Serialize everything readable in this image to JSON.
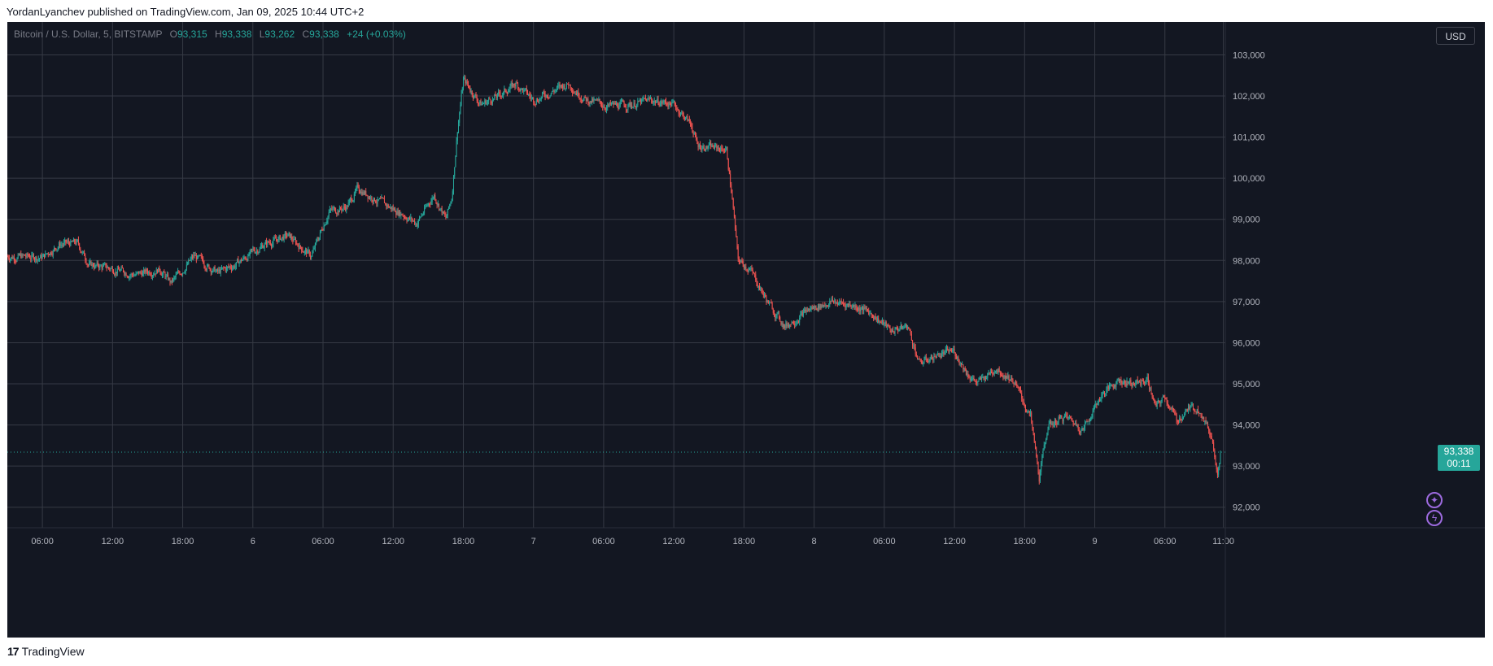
{
  "header": {
    "published_text": "YordanLyanchev published on TradingView.com, Jan 09, 2025 10:44 UTC+2"
  },
  "legend": {
    "symbol": "Bitcoin / U.S. Dollar, 5, BITSTAMP",
    "open_label": "O",
    "open": "93,315",
    "high_label": "H",
    "high": "93,338",
    "low_label": "L",
    "low": "93,262",
    "close_label": "C",
    "close": "93,338",
    "change": "+24 (+0.03%)"
  },
  "currency_button": "USD",
  "price_tag": {
    "price": "93,338",
    "countdown": "00:11"
  },
  "footer": {
    "brand": "TradingView",
    "logo_glyph": "17"
  },
  "icons": {
    "top": "sparkle-icon",
    "bottom": "lightning-icon"
  },
  "colors": {
    "background": "#131722",
    "grid": "#363a45",
    "up": "#26a69a",
    "down": "#ef5350",
    "axis_text": "#b2b5be",
    "accent_icon": "#9c6ade"
  },
  "chart_data": {
    "type": "candlestick",
    "symbol": "Bitcoin / U.S. Dollar",
    "interval": "5",
    "exchange": "BITSTAMP",
    "currency": "USD",
    "y_ticks": [
      92000,
      93000,
      94000,
      95000,
      96000,
      97000,
      98000,
      99000,
      100000,
      101000,
      102000,
      103000
    ],
    "y_tick_labels": [
      "92,000",
      "93,000",
      "94,000",
      "95,000",
      "96,000",
      "97,000",
      "98,000",
      "99,000",
      "100,000",
      "101,000",
      "102,000",
      "103,000"
    ],
    "ylim": [
      91500,
      103800
    ],
    "x_ticks": [
      {
        "time": "2025-01-05 06:00",
        "label": "06:00"
      },
      {
        "time": "2025-01-05 12:00",
        "label": "12:00"
      },
      {
        "time": "2025-01-05 18:00",
        "label": "18:00"
      },
      {
        "time": "2025-01-06 00:00",
        "label": "6"
      },
      {
        "time": "2025-01-06 06:00",
        "label": "06:00"
      },
      {
        "time": "2025-01-06 12:00",
        "label": "12:00"
      },
      {
        "time": "2025-01-06 18:00",
        "label": "18:00"
      },
      {
        "time": "2025-01-07 00:00",
        "label": "7"
      },
      {
        "time": "2025-01-07 06:00",
        "label": "06:00"
      },
      {
        "time": "2025-01-07 12:00",
        "label": "12:00"
      },
      {
        "time": "2025-01-07 18:00",
        "label": "18:00"
      },
      {
        "time": "2025-01-08 00:00",
        "label": "8"
      },
      {
        "time": "2025-01-08 06:00",
        "label": "06:00"
      },
      {
        "time": "2025-01-08 12:00",
        "label": "12:00"
      },
      {
        "time": "2025-01-08 18:00",
        "label": "18:00"
      },
      {
        "time": "2025-01-09 00:00",
        "label": "9"
      },
      {
        "time": "2025-01-09 06:00",
        "label": "06:00"
      },
      {
        "time": "2025-01-09 11:00",
        "label": "11:00"
      }
    ],
    "xlim": [
      "2025-01-05 03:00",
      "2025-01-09 11:10"
    ],
    "last_price": 93338,
    "grid": true,
    "price_path": [
      {
        "time": "2025-01-05 03:00",
        "price": 98100
      },
      {
        "time": "2025-01-05 06:00",
        "price": 98080
      },
      {
        "time": "2025-01-05 07:30",
        "price": 98400
      },
      {
        "time": "2025-01-05 09:00",
        "price": 98420
      },
      {
        "time": "2025-01-05 10:00",
        "price": 97900
      },
      {
        "time": "2025-01-05 12:00",
        "price": 97800
      },
      {
        "time": "2025-01-05 14:00",
        "price": 97650
      },
      {
        "time": "2025-01-05 16:00",
        "price": 97800
      },
      {
        "time": "2025-01-05 17:00",
        "price": 97450
      },
      {
        "time": "2025-01-05 19:00",
        "price": 98100
      },
      {
        "time": "2025-01-05 21:00",
        "price": 97700
      },
      {
        "time": "2025-01-05 22:30",
        "price": 97900
      },
      {
        "time": "2025-01-06 00:00",
        "price": 98200
      },
      {
        "time": "2025-01-06 01:00",
        "price": 98400
      },
      {
        "time": "2025-01-06 03:00",
        "price": 98600
      },
      {
        "time": "2025-01-06 05:00",
        "price": 98100
      },
      {
        "time": "2025-01-06 06:30",
        "price": 99200
      },
      {
        "time": "2025-01-06 08:00",
        "price": 99300
      },
      {
        "time": "2025-01-06 09:00",
        "price": 99750
      },
      {
        "time": "2025-01-06 11:00",
        "price": 99400
      },
      {
        "time": "2025-01-06 13:00",
        "price": 99100
      },
      {
        "time": "2025-01-06 14:00",
        "price": 98900
      },
      {
        "time": "2025-01-06 15:30",
        "price": 99600
      },
      {
        "time": "2025-01-06 16:30",
        "price": 99000
      },
      {
        "time": "2025-01-06 17:00",
        "price": 99500
      },
      {
        "time": "2025-01-06 17:30",
        "price": 101200
      },
      {
        "time": "2025-01-06 18:00",
        "price": 102400
      },
      {
        "time": "2025-01-06 19:30",
        "price": 101800
      },
      {
        "time": "2025-01-06 21:00",
        "price": 102000
      },
      {
        "time": "2025-01-06 22:30",
        "price": 102300
      },
      {
        "time": "2025-01-07 00:00",
        "price": 101900
      },
      {
        "time": "2025-01-07 01:30",
        "price": 102100
      },
      {
        "time": "2025-01-07 03:00",
        "price": 102300
      },
      {
        "time": "2025-01-07 04:30",
        "price": 101900
      },
      {
        "time": "2025-01-07 06:30",
        "price": 101750
      },
      {
        "time": "2025-01-07 08:30",
        "price": 101800
      },
      {
        "time": "2025-01-07 10:00",
        "price": 101900
      },
      {
        "time": "2025-01-07 12:00",
        "price": 101800
      },
      {
        "time": "2025-01-07 13:30",
        "price": 101300
      },
      {
        "time": "2025-01-07 14:00",
        "price": 100800
      },
      {
        "time": "2025-01-07 16:30",
        "price": 100700
      },
      {
        "time": "2025-01-07 17:00",
        "price": 99500
      },
      {
        "time": "2025-01-07 17:30",
        "price": 98000
      },
      {
        "time": "2025-01-07 18:30",
        "price": 97800
      },
      {
        "time": "2025-01-07 20:00",
        "price": 97000
      },
      {
        "time": "2025-01-07 21:30",
        "price": 96400
      },
      {
        "time": "2025-01-07 23:30",
        "price": 96800
      },
      {
        "time": "2025-01-08 01:30",
        "price": 97000
      },
      {
        "time": "2025-01-08 03:30",
        "price": 96900
      },
      {
        "time": "2025-01-08 05:00",
        "price": 96700
      },
      {
        "time": "2025-01-08 06:30",
        "price": 96300
      },
      {
        "time": "2025-01-08 08:00",
        "price": 96400
      },
      {
        "time": "2025-01-08 09:00",
        "price": 95500
      },
      {
        "time": "2025-01-08 10:30",
        "price": 95700
      },
      {
        "time": "2025-01-08 12:00",
        "price": 95800
      },
      {
        "time": "2025-01-08 13:00",
        "price": 95300
      },
      {
        "time": "2025-01-08 14:00",
        "price": 95000
      },
      {
        "time": "2025-01-08 15:30",
        "price": 95400
      },
      {
        "time": "2025-01-08 17:00",
        "price": 95100
      },
      {
        "time": "2025-01-08 18:30",
        "price": 94200
      },
      {
        "time": "2025-01-08 19:15",
        "price": 92700
      },
      {
        "time": "2025-01-08 20:00",
        "price": 94000
      },
      {
        "time": "2025-01-08 21:30",
        "price": 94200
      },
      {
        "time": "2025-01-08 23:00",
        "price": 93900
      },
      {
        "time": "2025-01-09 00:30",
        "price": 94700
      },
      {
        "time": "2025-01-09 02:00",
        "price": 95100
      },
      {
        "time": "2025-01-09 03:30",
        "price": 95000
      },
      {
        "time": "2025-01-09 04:30",
        "price": 95100
      },
      {
        "time": "2025-01-09 05:15",
        "price": 94400
      },
      {
        "time": "2025-01-09 06:00",
        "price": 94700
      },
      {
        "time": "2025-01-09 07:00",
        "price": 94100
      },
      {
        "time": "2025-01-09 08:00",
        "price": 94400
      },
      {
        "time": "2025-01-09 09:00",
        "price": 94400
      },
      {
        "time": "2025-01-09 10:00",
        "price": 93700
      },
      {
        "time": "2025-01-09 10:30",
        "price": 92900
      },
      {
        "time": "2025-01-09 10:45",
        "price": 93338
      }
    ]
  }
}
